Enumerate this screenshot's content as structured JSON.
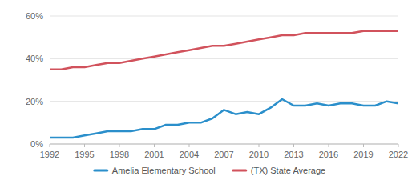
{
  "chart_data": {
    "type": "line",
    "x": [
      1992,
      1993,
      1994,
      1995,
      1996,
      1997,
      1998,
      1999,
      2000,
      2001,
      2002,
      2003,
      2004,
      2005,
      2006,
      2007,
      2008,
      2009,
      2010,
      2011,
      2012,
      2013,
      2014,
      2015,
      2016,
      2017,
      2018,
      2019,
      2020,
      2021,
      2022
    ],
    "series": [
      {
        "name": "Amelia Elementary School",
        "color": "#2b8fcb",
        "values": [
          3,
          3,
          3,
          4,
          5,
          6,
          6,
          6,
          7,
          7,
          9,
          9,
          10,
          10,
          12,
          16,
          14,
          15,
          14,
          17,
          21,
          18,
          18,
          19,
          18,
          19,
          19,
          18,
          18,
          20,
          19
        ]
      },
      {
        "name": "(TX) State Average",
        "color": "#d1525c",
        "values": [
          35,
          35,
          36,
          36,
          37,
          38,
          38,
          39,
          40,
          41,
          42,
          43,
          44,
          45,
          46,
          46,
          47,
          48,
          49,
          50,
          51,
          51,
          52,
          52,
          52,
          52,
          52,
          53,
          53,
          53,
          53
        ]
      }
    ],
    "xlim": [
      1992,
      2022
    ],
    "xticks": [
      1992,
      1995,
      1998,
      2001,
      2004,
      2007,
      2010,
      2013,
      2016,
      2019,
      2022
    ],
    "ylim": [
      0,
      60
    ],
    "yticks": [
      {
        "value": 0,
        "label": "0%"
      },
      {
        "value": 20,
        "label": "20%"
      },
      {
        "value": 40,
        "label": "40%"
      },
      {
        "value": 60,
        "label": "60%"
      }
    ],
    "grid": true,
    "legend": "bottom"
  }
}
